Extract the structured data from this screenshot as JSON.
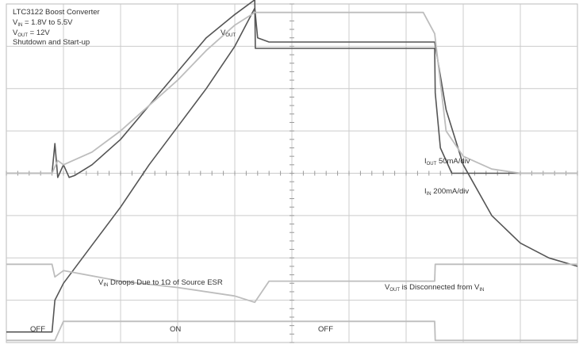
{
  "chart_data": {
    "type": "line",
    "header": {
      "line1": "LTC3122 Boost Converter",
      "vin_label": {
        "main": "V",
        "sub": "IN",
        "rest": " = 1.8V to 5.5V"
      },
      "vout_label": {
        "main": "V",
        "sub": "OUT",
        "rest": " = 12V"
      },
      "line4": "Shutdown and Start-up"
    },
    "grid": {
      "divisions_x": 10,
      "divisions_y": 8,
      "minor_ticks_per_div": 5,
      "visible": true
    },
    "annotations": {
      "vout": {
        "main": "V",
        "sub": "OUT",
        "rest": ""
      },
      "iout": {
        "main": "I",
        "sub": "OUT",
        "rest": " 50mA/div"
      },
      "iin": {
        "main": "I",
        "sub": "IN",
        "rest": " 200mA/div"
      },
      "vin_droop": {
        "main": "V",
        "sub": "IN",
        "rest": " Droops Due to 1Ω of Source ESR"
      },
      "disconnect": {
        "main": "V",
        "sub": "OUT",
        "rest": " is Disconnected from V",
        "sub2": "IN"
      }
    },
    "state_labels": [
      "OFF",
      "ON",
      "OFF"
    ],
    "colors": {
      "background": "#ffffff",
      "grid": "#cccccc",
      "dark_trace": "#555555",
      "light_trace": "#bdbdbd"
    },
    "series": [
      {
        "key": "vout",
        "color": "#555555",
        "x": [
          0,
          0.8,
          0.85,
          0.9,
          1.0,
          1.1,
          1.2,
          1.5,
          2.0,
          2.5,
          3.0,
          3.5,
          4.0,
          4.35,
          4.36,
          4.5,
          5.0,
          5.5,
          6.0,
          7.0,
          7.5,
          7.51,
          7.6,
          7.8,
          8.0,
          8.5,
          9.0,
          10
        ],
        "y": [
          4.0,
          4.0,
          4.7,
          3.9,
          4.2,
          3.9,
          3.95,
          4.2,
          4.8,
          5.6,
          6.4,
          7.2,
          7.75,
          8.1,
          6.95,
          6.95,
          6.95,
          6.95,
          6.95,
          6.95,
          6.95,
          5.9,
          4.6,
          4.0,
          4.0,
          4.0,
          4.0,
          4.0
        ]
      },
      {
        "key": "iin",
        "color": "#555555",
        "x": [
          0,
          0.8,
          0.85,
          1.0,
          1.5,
          2.0,
          2.5,
          3.0,
          3.5,
          4.0,
          4.35,
          4.4,
          4.6,
          5.0,
          6.0,
          7.0,
          7.5,
          7.7,
          8.0,
          8.5,
          9.0,
          9.5,
          10
        ],
        "y": [
          0.25,
          0.25,
          1.0,
          1.4,
          2.3,
          3.2,
          4.2,
          5.1,
          6.0,
          7.0,
          7.9,
          7.2,
          7.1,
          7.1,
          7.1,
          7.1,
          7.1,
          5.5,
          4.2,
          3.0,
          2.35,
          2.0,
          1.8
        ]
      },
      {
        "key": "iout",
        "color": "#bdbdbd",
        "x": [
          0,
          0.8,
          0.9,
          1.0,
          1.5,
          2.0,
          2.5,
          3.0,
          3.5,
          4.0,
          4.35,
          5.0,
          6.0,
          7.0,
          7.3,
          7.5,
          7.7,
          8.0,
          8.5,
          9.0,
          10
        ],
        "y": [
          4.0,
          4.0,
          4.3,
          4.2,
          4.5,
          5.0,
          5.6,
          6.2,
          6.9,
          7.5,
          7.8,
          7.8,
          7.8,
          7.8,
          7.8,
          7.3,
          5.0,
          4.4,
          4.1,
          4.0,
          4.0
        ]
      },
      {
        "key": "vin",
        "color": "#bdbdbd",
        "x": [
          0,
          0.8,
          0.85,
          1.0,
          2.0,
          3.0,
          4.0,
          4.35,
          4.6,
          5.0,
          6.0,
          7.0,
          7.5,
          7.51,
          10
        ],
        "y": [
          1.85,
          1.85,
          1.55,
          1.7,
          1.45,
          1.3,
          1.1,
          0.95,
          1.45,
          1.45,
          1.45,
          1.45,
          1.45,
          1.85,
          1.85
        ]
      },
      {
        "key": "shdn",
        "color": "#bdbdbd",
        "x": [
          0,
          0.85,
          1.0,
          7.5,
          7.51,
          10
        ],
        "y": [
          0.05,
          0.05,
          0.5,
          0.5,
          0.05,
          0.05
        ]
      }
    ]
  }
}
